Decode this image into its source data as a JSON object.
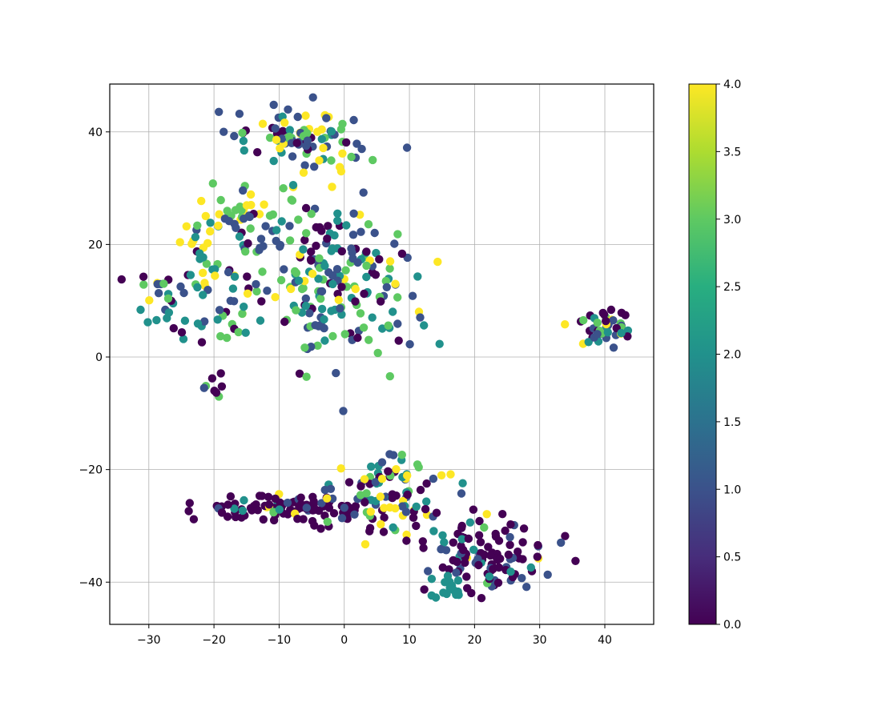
{
  "chart_data": {
    "type": "scatter",
    "title": "",
    "xlabel": "",
    "ylabel": "",
    "xlim": [
      -36,
      47.5
    ],
    "ylim": [
      -47.5,
      48.5
    ],
    "xticks": [
      -30,
      -20,
      -10,
      0,
      10,
      20,
      30,
      40
    ],
    "xtick_labels": [
      "−30",
      "−20",
      "−10",
      "0",
      "10",
      "20",
      "30",
      "40"
    ],
    "yticks": [
      -40,
      -20,
      0,
      20,
      40
    ],
    "ytick_labels": [
      "−40",
      "−20",
      "0",
      "20",
      "40"
    ],
    "grid": true,
    "colormap": "viridis",
    "colorbar": {
      "range": [
        0,
        4
      ],
      "ticks": [
        0,
        0.5,
        1,
        1.5,
        2,
        2.5,
        3,
        3.5,
        4
      ],
      "tick_labels": [
        "0.0",
        "0.5",
        "1.0",
        "1.5",
        "2.0",
        "2.5",
        "3.0",
        "3.5",
        "4.0"
      ]
    },
    "clusters": [
      {
        "region": "top",
        "cx": -6,
        "cy": 39,
        "sx": 5,
        "sy": 3,
        "n": 95,
        "mix": [
          0.1,
          0.25,
          0.2,
          0.2,
          0.25
        ]
      },
      {
        "region": "left-upper",
        "cx": -17,
        "cy": 26,
        "sx": 3.5,
        "sy": 3,
        "n": 45,
        "mix": [
          0.05,
          0.15,
          0.05,
          0.25,
          0.5
        ]
      },
      {
        "region": "left-mid",
        "cx": -23,
        "cy": 11,
        "sx": 5,
        "sy": 4,
        "n": 70,
        "mix": [
          0.2,
          0.2,
          0.35,
          0.15,
          0.1
        ]
      },
      {
        "region": "center",
        "cx": -5,
        "cy": 14,
        "sx": 6,
        "sy": 7,
        "n": 170,
        "mix": [
          0.15,
          0.3,
          0.25,
          0.25,
          0.05
        ]
      },
      {
        "region": "center-right",
        "cx": 5,
        "cy": 12,
        "sx": 4,
        "sy": 6,
        "n": 45,
        "mix": [
          0.2,
          0.3,
          0.2,
          0.15,
          0.15
        ]
      },
      {
        "region": "small-left",
        "cx": -20,
        "cy": -5,
        "sx": 0.8,
        "sy": 0.8,
        "n": 8,
        "mix": [
          0.3,
          0.3,
          0.1,
          0.3,
          0.0
        ]
      },
      {
        "region": "right",
        "cx": 40,
        "cy": 5,
        "sx": 2,
        "sy": 1.5,
        "n": 45,
        "mix": [
          0.35,
          0.2,
          0.2,
          0.1,
          0.15
        ]
      },
      {
        "region": "bottom-band-left",
        "cx": -8,
        "cy": -27,
        "sx": 6,
        "sy": 1.3,
        "n": 95,
        "mix": [
          0.8,
          0.1,
          0.05,
          0.03,
          0.02
        ]
      },
      {
        "region": "bottom-mid",
        "cx": 7,
        "cy": -25,
        "sx": 5,
        "sy": 4,
        "n": 100,
        "mix": [
          0.2,
          0.2,
          0.15,
          0.2,
          0.25
        ]
      },
      {
        "region": "bottom-right",
        "cx": 22,
        "cy": -35,
        "sx": 5,
        "sy": 3,
        "n": 110,
        "mix": [
          0.6,
          0.25,
          0.1,
          0.03,
          0.02
        ]
      },
      {
        "region": "bottom-tip",
        "cx": 16,
        "cy": -41,
        "sx": 1.5,
        "sy": 1,
        "n": 15,
        "mix": [
          0.0,
          0.1,
          0.7,
          0.15,
          0.05
        ]
      }
    ]
  }
}
